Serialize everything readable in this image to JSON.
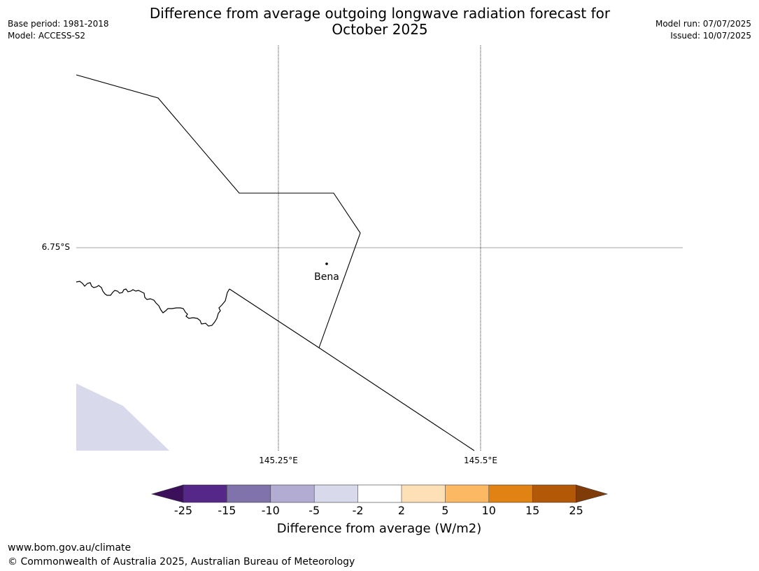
{
  "title": "Difference from average outgoing longwave radiation forecast for October 2025",
  "header_left": {
    "base_period": "Base period: 1981-2018",
    "model": "Model: ACCESS-S2"
  },
  "header_right": {
    "model_run": "Model run: 07/07/2025",
    "issued": "Issued: 10/07/2025"
  },
  "map": {
    "lat_gridline_label": "6.75°S",
    "lon_gridline_labels": [
      "145.25°E",
      "145.5°E"
    ],
    "place": "Bena"
  },
  "colorbar": {
    "title": "Difference from average (W/m2)",
    "ticks": [
      "-25",
      "-15",
      "-10",
      "-5",
      "-2",
      "2",
      "5",
      "10",
      "15",
      "25"
    ],
    "under_color": "#3b0f5a",
    "over_color": "#7f3b08",
    "bin_colors": [
      "#542788",
      "#8073ac",
      "#b2abd2",
      "#d8daeb",
      "#ffffff",
      "#fee0b6",
      "#fdb863",
      "#e08214",
      "#b35806"
    ],
    "shaded_region_color": "#d8daeb"
  },
  "footer": {
    "url": "www.bom.gov.au/climate",
    "copyright": "© Commonwealth of Australia 2025, Australian Bureau of Meteorology"
  }
}
